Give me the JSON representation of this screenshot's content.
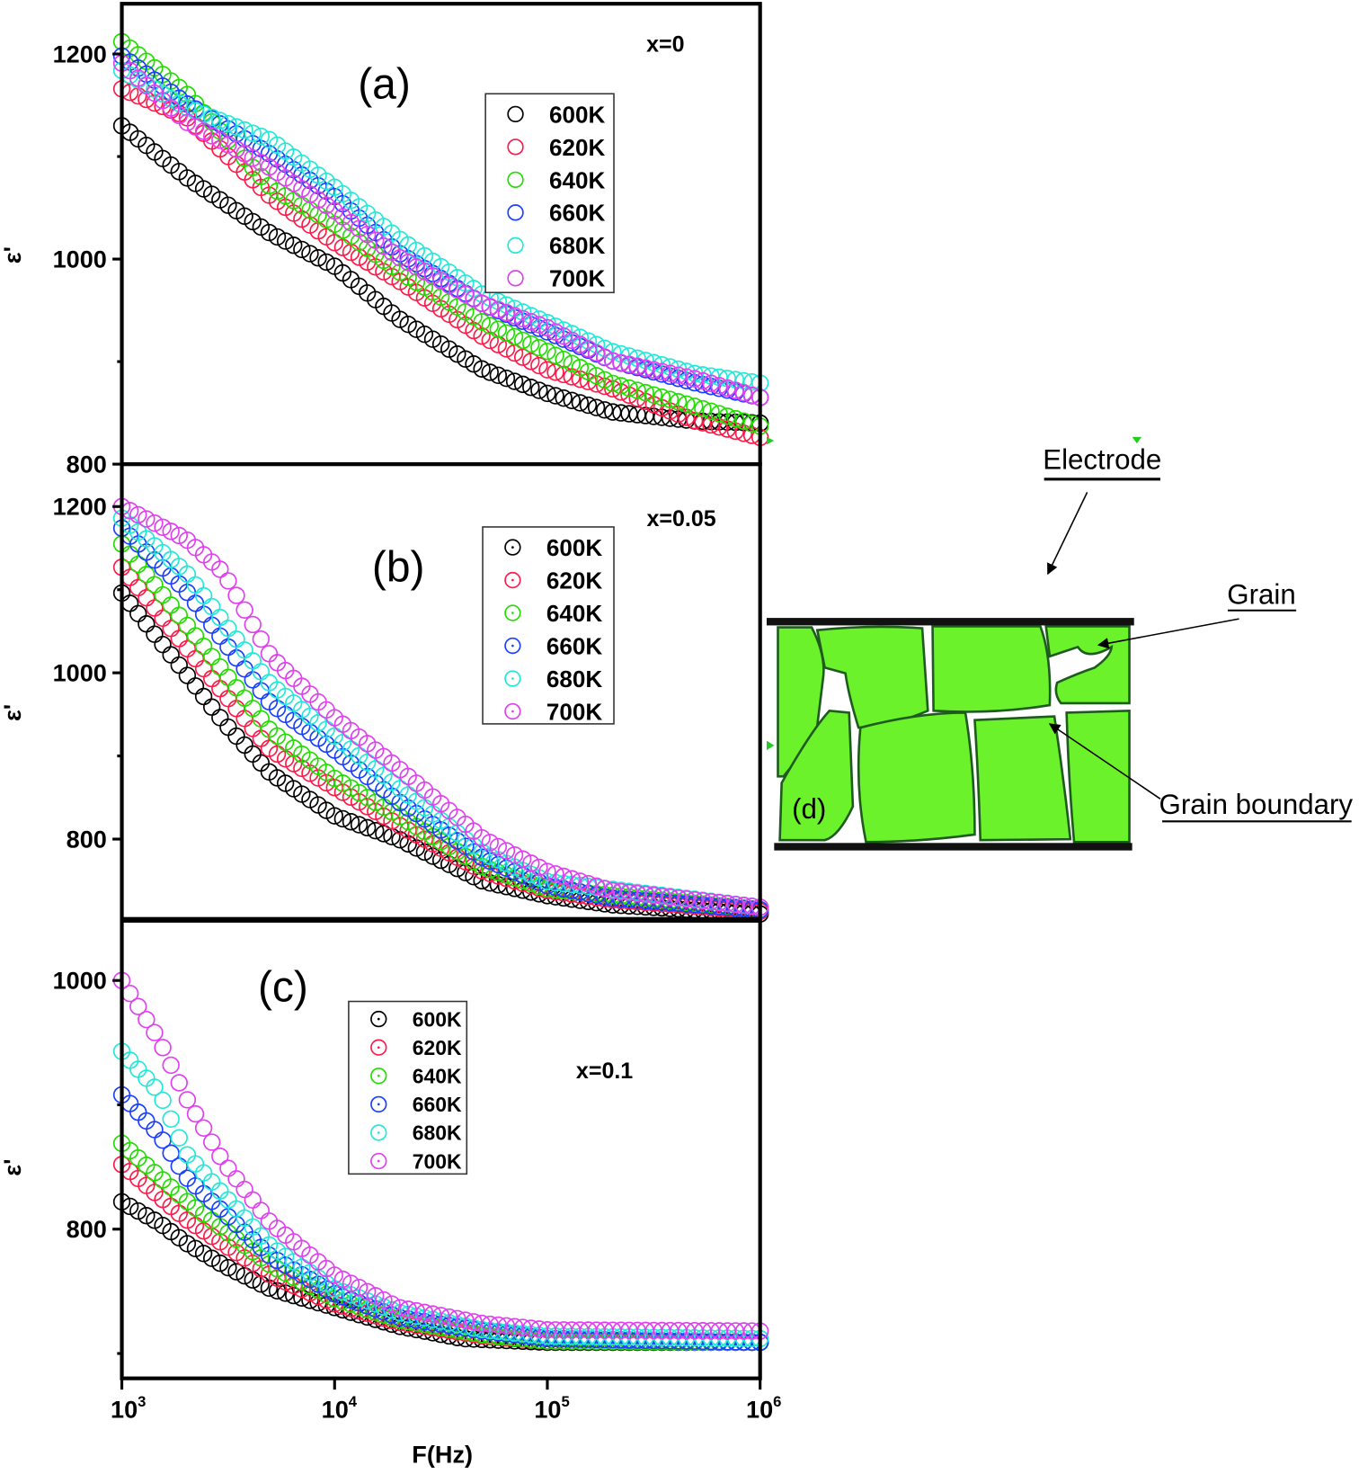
{
  "figure": {
    "xlabel": "F(Hz)",
    "ylabel": "ε'",
    "x_tick_labels": [
      {
        "base": "10",
        "exp": "3"
      },
      {
        "base": "10",
        "exp": "4"
      },
      {
        "base": "10",
        "exp": "5"
      },
      {
        "base": "10",
        "exp": "6"
      }
    ],
    "x_ticks": [
      1000,
      10000,
      100000,
      1000000
    ]
  },
  "chart_data": [
    {
      "type": "scatter",
      "panel_label": "(a)",
      "annotation": "x=0",
      "x_scale": "log",
      "xlim": [
        1000,
        1000000
      ],
      "ylim": [
        800,
        1249
      ],
      "yticks": [
        800,
        1000,
        1200
      ],
      "yminor": [
        900,
        1100
      ],
      "legend_position": "top-center",
      "series": [
        {
          "name": "600K",
          "color": "#000000",
          "x": [
            1000,
            2000,
            5000,
            10000,
            20000,
            50000,
            100000,
            200000,
            500000,
            1000000
          ],
          "y": [
            1130,
            1080,
            1025,
            993,
            942,
            892,
            869,
            851,
            842,
            840
          ]
        },
        {
          "name": "620K",
          "color": "#ff1a4a",
          "x": [
            1000,
            2000,
            5000,
            10000,
            20000,
            50000,
            100000,
            200000,
            500000,
            1000000
          ],
          "y": [
            1166,
            1139,
            1061,
            1016,
            979,
            924,
            892,
            874,
            842,
            826
          ]
        },
        {
          "name": "640K",
          "color": "#22dd00",
          "x": [
            1000,
            2000,
            5000,
            10000,
            20000,
            50000,
            100000,
            200000,
            500000,
            1000000
          ],
          "y": [
            1212,
            1162,
            1070,
            1034,
            988,
            938,
            910,
            879,
            856,
            837
          ]
        },
        {
          "name": "660K",
          "color": "#1a3fff",
          "x": [
            1000,
            2000,
            5000,
            10000,
            20000,
            50000,
            100000,
            200000,
            500000,
            1000000
          ],
          "y": [
            1198,
            1152,
            1102,
            1061,
            1006,
            956,
            929,
            901,
            879,
            865
          ]
        },
        {
          "name": "680K",
          "color": "#22e8d8",
          "x": [
            1000,
            2000,
            5000,
            10000,
            20000,
            50000,
            100000,
            200000,
            500000,
            1000000
          ],
          "y": [
            1184,
            1148,
            1116,
            1070,
            1020,
            965,
            938,
            910,
            888,
            879
          ]
        },
        {
          "name": "700K",
          "color": "#e040f0",
          "x": [
            1000,
            2000,
            5000,
            10000,
            20000,
            50000,
            100000,
            200000,
            500000,
            1000000
          ],
          "y": [
            1191,
            1134,
            1089,
            1047,
            1002,
            956,
            933,
            901,
            883,
            865
          ]
        }
      ]
    },
    {
      "type": "scatter",
      "panel_label": "(b)",
      "annotation": "x=0.05",
      "x_scale": "log",
      "xlim": [
        1000,
        1000000
      ],
      "ylim": [
        704,
        1251
      ],
      "yticks": [
        800,
        1000,
        1200
      ],
      "yminor": [
        900,
        1100
      ],
      "legend_position": "top-center",
      "series": [
        {
          "name": "600K",
          "color": "#000000",
          "x": [
            1000,
            2000,
            3000,
            5000,
            10000,
            20000,
            50000,
            100000,
            200000,
            1000000
          ],
          "y": [
            1096,
            999,
            941,
            879,
            828,
            800,
            749,
            732,
            721,
            710
          ]
        },
        {
          "name": "620K",
          "color": "#ff1a4a",
          "x": [
            1000,
            2000,
            5000,
            10000,
            20000,
            50000,
            100000,
            200000,
            1000000
          ],
          "y": [
            1127,
            1031,
            907,
            862,
            817,
            761,
            738,
            727,
            713
          ]
        },
        {
          "name": "640K",
          "color": "#22dd00",
          "x": [
            1000,
            2000,
            5000,
            10000,
            20000,
            50000,
            100000,
            1000000
          ],
          "y": [
            1155,
            1059,
            930,
            873,
            828,
            766,
            740,
            715
          ]
        },
        {
          "name": "660K",
          "color": "#1a3fff",
          "x": [
            1000,
            2000,
            5000,
            10000,
            20000,
            50000,
            100000,
            200000,
            1000000
          ],
          "y": [
            1174,
            1099,
            963,
            907,
            845,
            777,
            744,
            729,
            715
          ]
        },
        {
          "name": "680K",
          "color": "#22e8d8",
          "x": [
            1000,
            2000,
            5000,
            10000,
            20000,
            50000,
            100000,
            1000000
          ],
          "y": [
            1186,
            1121,
            986,
            924,
            862,
            783,
            749,
            718
          ]
        },
        {
          "name": "700K",
          "color": "#e040f0",
          "x": [
            1000,
            2000,
            3000,
            5000,
            10000,
            20000,
            50000,
            100000,
            200000,
            1000000
          ],
          "y": [
            1200,
            1161,
            1121,
            1020,
            946,
            885,
            800,
            761,
            738,
            718
          ]
        }
      ]
    },
    {
      "type": "scatter",
      "panel_label": "(c)",
      "annotation": "x=0.1",
      "x_scale": "log",
      "xlim": [
        1000,
        1000000
      ],
      "ylim": [
        680,
        1048
      ],
      "yticks": [
        800,
        1000
      ],
      "yminor": [
        700,
        900
      ],
      "legend_position": "top-left",
      "series": [
        {
          "name": "600K",
          "color": "#000000",
          "x": [
            1000,
            1500,
            2000,
            3000,
            5000,
            10000,
            20000,
            40000,
            100000,
            1000000
          ],
          "y": [
            822,
            805,
            789,
            771,
            752,
            737,
            722,
            712,
            709,
            709
          ]
        },
        {
          "name": "620K",
          "color": "#ff1a4a",
          "x": [
            1000,
            2000,
            5000,
            10000,
            20000,
            50000,
            100000,
            1000000
          ],
          "y": [
            852,
            808,
            763,
            740,
            725,
            714,
            710,
            709
          ]
        },
        {
          "name": "640K",
          "color": "#22dd00",
          "x": [
            1000,
            2000,
            5000,
            10000,
            20000,
            50000,
            100000,
            1000000
          ],
          "y": [
            869,
            823,
            771,
            744,
            727,
            715,
            710,
            709
          ]
        },
        {
          "name": "660K",
          "color": "#1a3fff",
          "x": [
            1000,
            1500,
            2000,
            5000,
            10000,
            20000,
            50000,
            100000,
            1000000
          ],
          "y": [
            908,
            876,
            842,
            778,
            748,
            729,
            718,
            712,
            709
          ]
        },
        {
          "name": "680K",
          "color": "#22e8d8",
          "x": [
            1000,
            1500,
            2000,
            5000,
            10000,
            20000,
            50000,
            100000,
            1000000
          ],
          "y": [
            943,
            910,
            861,
            786,
            752,
            733,
            719,
            714,
            712
          ]
        },
        {
          "name": "700K",
          "color": "#e040f0",
          "x": [
            1000,
            1500,
            2000,
            3000,
            5000,
            10000,
            20000,
            50000,
            100000,
            1000000
          ],
          "y": [
            1000,
            952,
            906,
            854,
            805,
            763,
            737,
            724,
            719,
            718
          ]
        }
      ]
    }
  ],
  "diagram": {
    "panel_label": "(d)",
    "electrode_label": "Electrode",
    "grain_label": "Grain",
    "grain_boundary_label": "Grain boundary",
    "grain_color": "#6cf22a",
    "boundary_color": "#1f5a1f"
  }
}
